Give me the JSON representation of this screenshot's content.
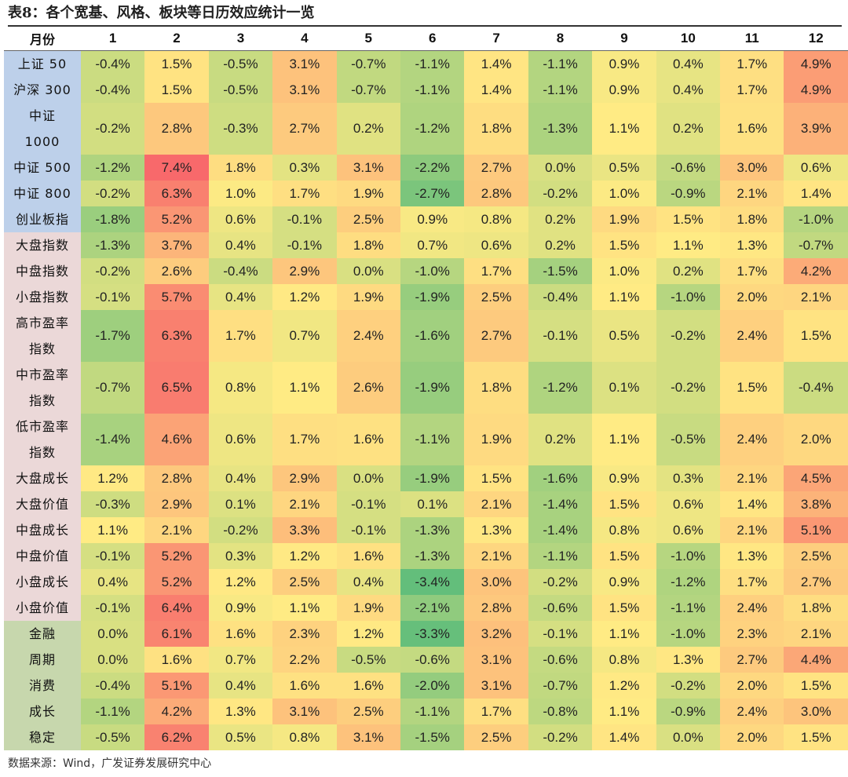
{
  "title": "表8：各个宽基、风格、板块等日历效应统计一览",
  "source": "数据来源：Wind，广发证券发展研究中心",
  "chart_data": {
    "type": "heatmap",
    "title": "表8：各个宽基、风格、板块等日历效应统计一览",
    "row_header": "月份",
    "columns": [
      "1",
      "2",
      "3",
      "4",
      "5",
      "6",
      "7",
      "8",
      "9",
      "10",
      "11",
      "12"
    ],
    "value_unit": "%",
    "color_scale": {
      "low": "#63be7b",
      "mid": "#ffeb84",
      "high": "#f8696b"
    },
    "groups": [
      {
        "name": "broad",
        "color": "#bdd0ea"
      },
      {
        "name": "style",
        "color": "#ebd8d8"
      },
      {
        "name": "sector",
        "color": "#c7d7ad"
      }
    ],
    "rows": [
      {
        "label": "上证 50",
        "lines": [
          "上证 50"
        ],
        "group": "broad",
        "values": [
          -0.4,
          1.5,
          -0.5,
          3.1,
          -0.7,
          -1.1,
          1.4,
          -1.1,
          0.9,
          0.4,
          1.7,
          4.9
        ]
      },
      {
        "label": "沪深 300",
        "lines": [
          "沪深 300"
        ],
        "group": "broad",
        "values": [
          -0.4,
          1.5,
          -0.5,
          3.1,
          -0.7,
          -1.1,
          1.4,
          -1.1,
          0.9,
          0.4,
          1.7,
          4.9
        ]
      },
      {
        "label": "中证 1000",
        "lines": [
          "中证",
          "1000"
        ],
        "group": "broad",
        "values": [
          -0.2,
          2.8,
          -0.3,
          2.7,
          0.2,
          -1.2,
          1.8,
          -1.3,
          1.1,
          0.2,
          1.6,
          3.9
        ]
      },
      {
        "label": "中证 500",
        "lines": [
          "中证 500"
        ],
        "group": "broad",
        "values": [
          -1.2,
          7.4,
          1.8,
          0.3,
          3.1,
          -2.2,
          2.7,
          0.0,
          0.5,
          -0.6,
          3.0,
          0.6
        ]
      },
      {
        "label": "中证 800",
        "lines": [
          "中证 800"
        ],
        "group": "broad",
        "values": [
          -0.2,
          6.3,
          1.0,
          1.7,
          1.9,
          -2.7,
          2.8,
          -0.2,
          1.0,
          -0.9,
          2.1,
          1.4
        ]
      },
      {
        "label": "创业板指",
        "lines": [
          "创业板指"
        ],
        "group": "broad",
        "values": [
          -1.8,
          5.2,
          0.6,
          -0.1,
          2.5,
          0.9,
          0.8,
          0.2,
          1.9,
          1.5,
          1.8,
          -1.0
        ]
      },
      {
        "label": "大盘指数",
        "lines": [
          "大盘指数"
        ],
        "group": "style",
        "values": [
          -1.3,
          3.7,
          0.4,
          -0.1,
          1.8,
          0.7,
          0.6,
          0.2,
          1.5,
          1.1,
          1.3,
          -0.7
        ]
      },
      {
        "label": "中盘指数",
        "lines": [
          "中盘指数"
        ],
        "group": "style",
        "values": [
          -0.2,
          2.6,
          -0.4,
          2.9,
          0.0,
          -1.0,
          1.7,
          -1.5,
          1.0,
          0.2,
          1.7,
          4.2
        ]
      },
      {
        "label": "小盘指数",
        "lines": [
          "小盘指数"
        ],
        "group": "style",
        "values": [
          -0.1,
          5.7,
          0.4,
          1.2,
          1.9,
          -1.9,
          2.5,
          -0.4,
          1.1,
          -1.0,
          2.0,
          2.1
        ]
      },
      {
        "label": "高市盈率指数",
        "lines": [
          "高市盈率",
          "指数"
        ],
        "group": "style",
        "values": [
          -1.7,
          6.3,
          1.7,
          0.7,
          2.4,
          -1.6,
          2.7,
          -0.1,
          0.5,
          -0.2,
          2.4,
          1.5
        ]
      },
      {
        "label": "中市盈率指数",
        "lines": [
          "中市盈率",
          "指数"
        ],
        "group": "style",
        "values": [
          -0.7,
          6.5,
          0.8,
          1.1,
          2.6,
          -1.9,
          1.8,
          -1.2,
          0.1,
          -0.2,
          1.5,
          -0.4
        ]
      },
      {
        "label": "低市盈率指数",
        "lines": [
          "低市盈率",
          "指数"
        ],
        "group": "style",
        "values": [
          -1.4,
          4.6,
          0.6,
          1.7,
          1.6,
          -1.1,
          1.9,
          0.2,
          1.1,
          -0.5,
          2.4,
          2.0
        ]
      },
      {
        "label": "大盘成长",
        "lines": [
          "大盘成长"
        ],
        "group": "style",
        "values": [
          1.2,
          2.8,
          0.4,
          2.9,
          0.0,
          -1.9,
          1.5,
          -1.6,
          0.9,
          0.3,
          2.1,
          4.5
        ]
      },
      {
        "label": "大盘价值",
        "lines": [
          "大盘价值"
        ],
        "group": "style",
        "values": [
          -0.3,
          2.9,
          0.1,
          2.1,
          -0.1,
          0.1,
          2.1,
          -1.4,
          1.5,
          0.6,
          1.4,
          3.8
        ]
      },
      {
        "label": "中盘成长",
        "lines": [
          "中盘成长"
        ],
        "group": "style",
        "values": [
          1.1,
          2.1,
          -0.2,
          3.3,
          -0.1,
          -1.3,
          1.3,
          -1.4,
          0.8,
          0.6,
          2.1,
          5.1
        ]
      },
      {
        "label": "中盘价值",
        "lines": [
          "中盘价值"
        ],
        "group": "style",
        "values": [
          -0.1,
          5.2,
          0.3,
          1.2,
          1.6,
          -1.3,
          2.1,
          -1.1,
          1.5,
          -1.0,
          1.3,
          2.5
        ]
      },
      {
        "label": "小盘成长",
        "lines": [
          "小盘成长"
        ],
        "group": "style",
        "values": [
          0.4,
          5.2,
          1.2,
          2.5,
          0.4,
          -3.4,
          3.0,
          -0.2,
          0.9,
          -1.2,
          1.7,
          2.7
        ]
      },
      {
        "label": "小盘价值",
        "lines": [
          "小盘价值"
        ],
        "group": "style",
        "values": [
          -0.1,
          6.4,
          0.9,
          1.1,
          1.9,
          -2.1,
          2.8,
          -0.6,
          1.5,
          -1.1,
          2.4,
          1.8
        ]
      },
      {
        "label": "金融",
        "lines": [
          "金融"
        ],
        "group": "sector",
        "values": [
          0.0,
          6.1,
          1.6,
          2.3,
          1.2,
          -3.3,
          3.2,
          -0.1,
          1.1,
          -1.0,
          2.3,
          2.1
        ]
      },
      {
        "label": "周期",
        "lines": [
          "周期"
        ],
        "group": "sector",
        "values": [
          0.0,
          1.6,
          0.7,
          2.2,
          -0.5,
          -0.6,
          3.1,
          -0.6,
          0.8,
          1.3,
          2.7,
          4.4
        ]
      },
      {
        "label": "消费",
        "lines": [
          "消费"
        ],
        "group": "sector",
        "values": [
          -0.4,
          5.1,
          0.4,
          1.6,
          1.6,
          -2.0,
          3.1,
          -0.7,
          1.2,
          -0.2,
          2.0,
          1.5
        ]
      },
      {
        "label": "成长",
        "lines": [
          "成长"
        ],
        "group": "sector",
        "values": [
          -1.1,
          4.2,
          1.3,
          3.1,
          2.5,
          -1.1,
          1.7,
          -0.8,
          1.1,
          -0.9,
          2.4,
          3.0
        ]
      },
      {
        "label": "稳定",
        "lines": [
          "稳定"
        ],
        "group": "sector",
        "values": [
          -0.5,
          6.2,
          0.5,
          0.8,
          3.1,
          -1.5,
          2.5,
          -0.2,
          1.4,
          0.0,
          2.0,
          1.5
        ]
      }
    ]
  }
}
